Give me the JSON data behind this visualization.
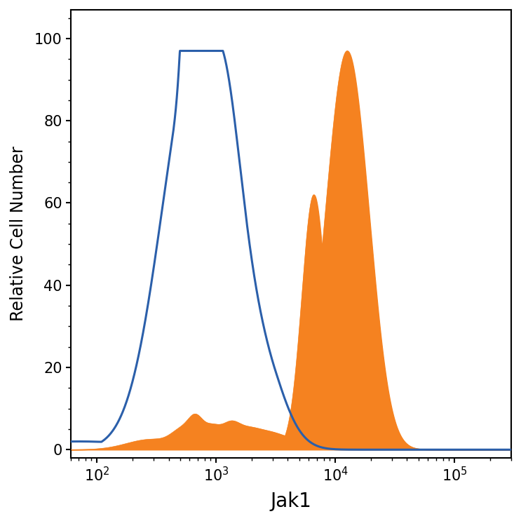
{
  "xlabel": "Jak1",
  "ylabel": "Relative Cell Number",
  "xlim_log": [
    60,
    300000
  ],
  "ylim": [
    -2,
    107
  ],
  "yticks": [
    0,
    20,
    40,
    60,
    80,
    100
  ],
  "blue_color": "#2b5faa",
  "orange_color": "#f58220",
  "blue_linewidth": 2.2,
  "xlabel_fontsize": 20,
  "ylabel_fontsize": 17,
  "tick_fontsize": 15,
  "background_color": "#ffffff",
  "figsize": [
    7.43,
    7.43
  ],
  "dpi": 100
}
